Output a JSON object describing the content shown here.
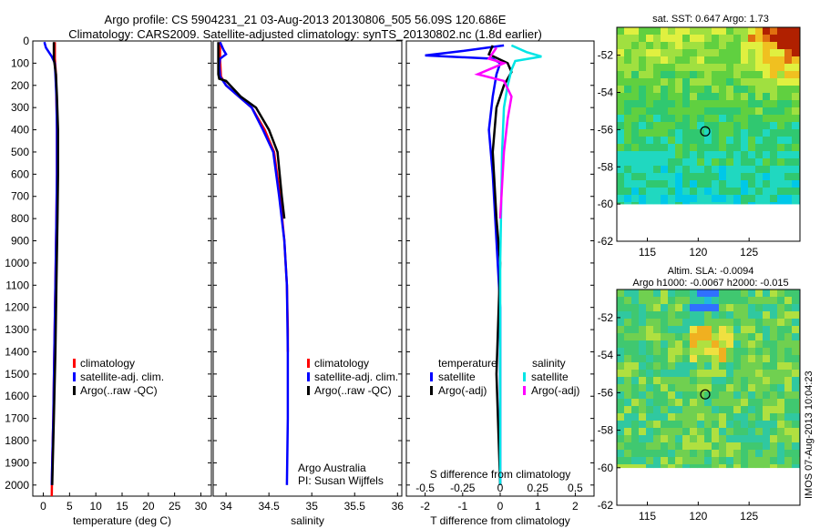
{
  "titles": {
    "line1": "Argo profile: CS 5904231_21 03-Aug-2013 20130806_505 56.09S 120.686E",
    "line2": "Climatology: CARS2009. Satellite-adjusted climatology: synTS_20130802.nc (1.8d earlier)"
  },
  "colors": {
    "climatology": "#ff0000",
    "satellite": "#0000ff",
    "argo": "#000000",
    "satellite_salinity": "#00e5e5",
    "argo_salinity": "#ff00ff"
  },
  "chart_data": [
    {
      "type": "line",
      "panel": "temperature",
      "xlabel": "temperature (deg C)",
      "ylabel": "",
      "xlim": [
        -2,
        32
      ],
      "ylim": [
        2050,
        0
      ],
      "xticks": [
        0,
        5,
        10,
        15,
        20,
        25,
        30
      ],
      "yticks": [
        0,
        100,
        200,
        300,
        400,
        500,
        600,
        700,
        800,
        900,
        1000,
        1100,
        1200,
        1300,
        1400,
        1500,
        1600,
        1700,
        1800,
        1900,
        2000
      ],
      "legend": [
        "climatology",
        "satellite-adj. clim.",
        "Argo(..raw -QC)"
      ],
      "series": [
        {
          "name": "climatology",
          "color": "#ff0000",
          "points": [
            [
              2.2,
              5
            ],
            [
              2.2,
              80
            ],
            [
              2.4,
              150
            ],
            [
              2.5,
              250
            ],
            [
              2.6,
              400
            ],
            [
              2.6,
              600
            ],
            [
              2.5,
              800
            ],
            [
              2.3,
              1100
            ],
            [
              2.1,
              1400
            ],
            [
              1.9,
              1700
            ],
            [
              1.7,
              1900
            ],
            [
              1.6,
              2050
            ]
          ]
        },
        {
          "name": "satellite-adj. clim.",
          "color": "#0000ff",
          "points": [
            [
              0.2,
              5
            ],
            [
              0.5,
              30
            ],
            [
              1.6,
              70
            ],
            [
              2.2,
              100
            ],
            [
              2.3,
              150
            ],
            [
              2.5,
              250
            ],
            [
              2.6,
              400
            ],
            [
              2.6,
              600
            ],
            [
              2.5,
              800
            ],
            [
              2.3,
              1100
            ],
            [
              2.1,
              1400
            ],
            [
              1.9,
              1700
            ],
            [
              1.7,
              1900
            ],
            [
              1.6,
              2000
            ]
          ]
        },
        {
          "name": "Argo(..raw -QC)",
          "color": "#000000",
          "points": [
            [
              2.0,
              5
            ],
            [
              2.0,
              80
            ],
            [
              2.4,
              150
            ],
            [
              2.6,
              250
            ],
            [
              2.8,
              400
            ],
            [
              2.8,
              600
            ],
            [
              2.7,
              800
            ],
            [
              2.5,
              1100
            ],
            [
              2.3,
              1400
            ],
            [
              2.0,
              1700
            ],
            [
              1.8,
              1900
            ],
            [
              1.7,
              2000
            ]
          ]
        }
      ]
    },
    {
      "type": "line",
      "panel": "salinity",
      "xlabel": "salinity",
      "ylabel": "",
      "xlim": [
        33.85,
        36.05
      ],
      "ylim": [
        2050,
        0
      ],
      "xticks": [
        34,
        34.5,
        35,
        35.5,
        36
      ],
      "xticklabels": [
        "34",
        "34.5",
        "35",
        "35.5",
        "36"
      ],
      "legend": [
        "climatology",
        "satellite-adj. clim.",
        "Argo(..raw -QC)"
      ],
      "annotation": [
        "Argo Australia",
        "PI: Susan Wijffels"
      ],
      "series": [
        {
          "name": "climatology",
          "color": "#ff0000",
          "points": [
            [
              33.93,
              5
            ],
            [
              33.93,
              80
            ],
            [
              33.94,
              160
            ],
            [
              34.0,
              200
            ],
            [
              34.15,
              250
            ],
            [
              34.3,
              300
            ],
            [
              34.45,
              400
            ],
            [
              34.56,
              500
            ],
            [
              34.63,
              700
            ],
            [
              34.68,
              900
            ],
            [
              34.71,
              1100
            ],
            [
              34.72,
              1300
            ],
            [
              34.72,
              1400
            ]
          ]
        },
        {
          "name": "satellite-adj. clim.",
          "color": "#0000ff",
          "points": [
            [
              33.93,
              5
            ],
            [
              33.97,
              40
            ],
            [
              34.0,
              60
            ],
            [
              33.93,
              80
            ],
            [
              33.92,
              110
            ],
            [
              33.93,
              160
            ],
            [
              34.0,
              200
            ],
            [
              34.15,
              250
            ],
            [
              34.3,
              300
            ],
            [
              34.43,
              400
            ],
            [
              34.55,
              500
            ],
            [
              34.62,
              700
            ],
            [
              34.68,
              900
            ],
            [
              34.71,
              1100
            ],
            [
              34.72,
              1400
            ],
            [
              34.72,
              1700
            ],
            [
              34.71,
              2000
            ]
          ]
        },
        {
          "name": "Argo(..raw -QC)",
          "color": "#000000",
          "points": [
            [
              33.91,
              5
            ],
            [
              33.91,
              80
            ],
            [
              33.91,
              150
            ],
            [
              33.92,
              170
            ],
            [
              34.0,
              180
            ],
            [
              34.17,
              250
            ],
            [
              34.35,
              300
            ],
            [
              34.5,
              400
            ],
            [
              34.6,
              500
            ],
            [
              34.65,
              700
            ],
            [
              34.68,
              800
            ]
          ]
        }
      ]
    },
    {
      "type": "line",
      "panel": "difference",
      "xlabel": "T difference from climatology",
      "xlabel_top": "S difference from climatology",
      "xlim": [
        -2.5,
        2.5
      ],
      "ylim": [
        2050,
        0
      ],
      "xticks": [
        -2,
        -1,
        0,
        1,
        2
      ],
      "top_ticks": [
        -0.5,
        -0.25,
        0,
        0.25,
        0.5
      ],
      "top_ticklabels": [
        "-0.5",
        "-0.25",
        "0",
        "0.25",
        "0.5"
      ],
      "legend_headers": [
        "temperature",
        "salinity"
      ],
      "legend": [
        "satellite",
        "Argo(-adj)",
        "satellite",
        "Argo(-adj)"
      ],
      "series": [
        {
          "name": "satellite",
          "group": "temperature",
          "color": "#0000ff",
          "points": [
            [
              0.1,
              20
            ],
            [
              -1.0,
              45
            ],
            [
              -2.0,
              65
            ],
            [
              -0.2,
              80
            ],
            [
              0.0,
              100
            ],
            [
              -0.1,
              150
            ],
            [
              -0.2,
              250
            ],
            [
              -0.3,
              400
            ],
            [
              -0.2,
              600
            ],
            [
              -0.1,
              900
            ],
            [
              0,
              1200
            ],
            [
              0,
              2000
            ]
          ]
        },
        {
          "name": "Argo(-adj)",
          "group": "temperature",
          "color": "#000000",
          "points": [
            [
              -0.2,
              20
            ],
            [
              -0.3,
              60
            ],
            [
              0.2,
              100
            ],
            [
              0.3,
              140
            ],
            [
              0.1,
              200
            ],
            [
              -0.1,
              300
            ],
            [
              -0.2,
              500
            ],
            [
              -0.1,
              800
            ],
            [
              0,
              1000
            ],
            [
              -0.1,
              1500
            ],
            [
              0,
              2000
            ]
          ]
        },
        {
          "name": "satellite",
          "group": "salinity",
          "color": "#00e5e5",
          "points": [
            [
              0.3,
              20
            ],
            [
              0.7,
              50
            ],
            [
              1.1,
              70
            ],
            [
              0.4,
              90
            ],
            [
              0.3,
              130
            ],
            [
              0.2,
              200
            ],
            [
              0.1,
              300
            ],
            [
              0.05,
              500
            ],
            [
              0,
              1000
            ],
            [
              0,
              2000
            ]
          ]
        },
        {
          "name": "Argo(-adj)",
          "group": "salinity",
          "color": "#ff00ff",
          "points": [
            [
              -0.1,
              30
            ],
            [
              -0.3,
              80
            ],
            [
              0.1,
              100
            ],
            [
              -0.6,
              150
            ],
            [
              0.1,
              180
            ],
            [
              0.3,
              250
            ],
            [
              0.2,
              350
            ],
            [
              0.1,
              500
            ],
            [
              0,
              800
            ]
          ]
        }
      ]
    },
    {
      "type": "heatmap",
      "panel": "sst-map",
      "title": "sat. SST: 0.647 Argo: 1.73",
      "xlim": [
        112,
        130
      ],
      "ylim": [
        -62,
        -50.5
      ],
      "xticks": [
        115,
        120,
        125
      ],
      "yticks": [
        -52,
        -54,
        -56,
        -58,
        -60,
        -62
      ],
      "marker": {
        "lon": 120.686,
        "lat": -56.09
      }
    },
    {
      "type": "heatmap",
      "panel": "sla-map",
      "title": "Altim. SLA: -0.0094",
      "subtitle": "Argo h1000: -0.0067 h2000: -0.015",
      "xlim": [
        112,
        130
      ],
      "ylim": [
        -62,
        -50.5
      ],
      "xticks": [
        115,
        120,
        125
      ],
      "yticks": [
        -52,
        -54,
        -56,
        -58,
        -60,
        -62
      ],
      "marker": {
        "lon": 120.686,
        "lat": -56.09
      }
    }
  ],
  "stamp": "IMOS 07-Aug-2013 10:04:23"
}
